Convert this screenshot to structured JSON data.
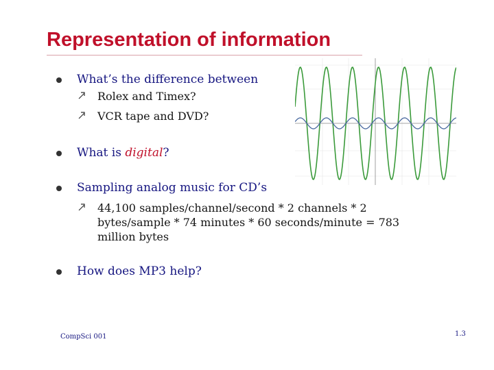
{
  "slide": {
    "title": "Representation of information",
    "bullets": [
      {
        "text": "What’s the difference between",
        "subs": [
          "Rolex and Timex?",
          "VCR tape and DVD?"
        ]
      },
      {
        "text_prefix": "What is ",
        "text_emphasis": "digital",
        "text_suffix": "?"
      },
      {
        "text": "Sampling analog music for CD’s",
        "subs": [
          "44,100 samples/channel/second *  2 channels * 2",
          "bytes/sample * 74 minutes * 60 seconds/minute = 783",
          "million bytes"
        ]
      },
      {
        "text": "How does MP3 help?"
      }
    ],
    "footer": "CompSci 001",
    "page_number": "1.3",
    "colors": {
      "title": "#c0102a",
      "bullet_text": "#151580",
      "emphasis": "#c0102a",
      "wave_large": "#3a9a3a",
      "wave_small": "#4a6aa0"
    },
    "icons": {
      "bullet": "filled-circle-icon",
      "sub_bullet": "arrow-up-right-icon"
    }
  }
}
